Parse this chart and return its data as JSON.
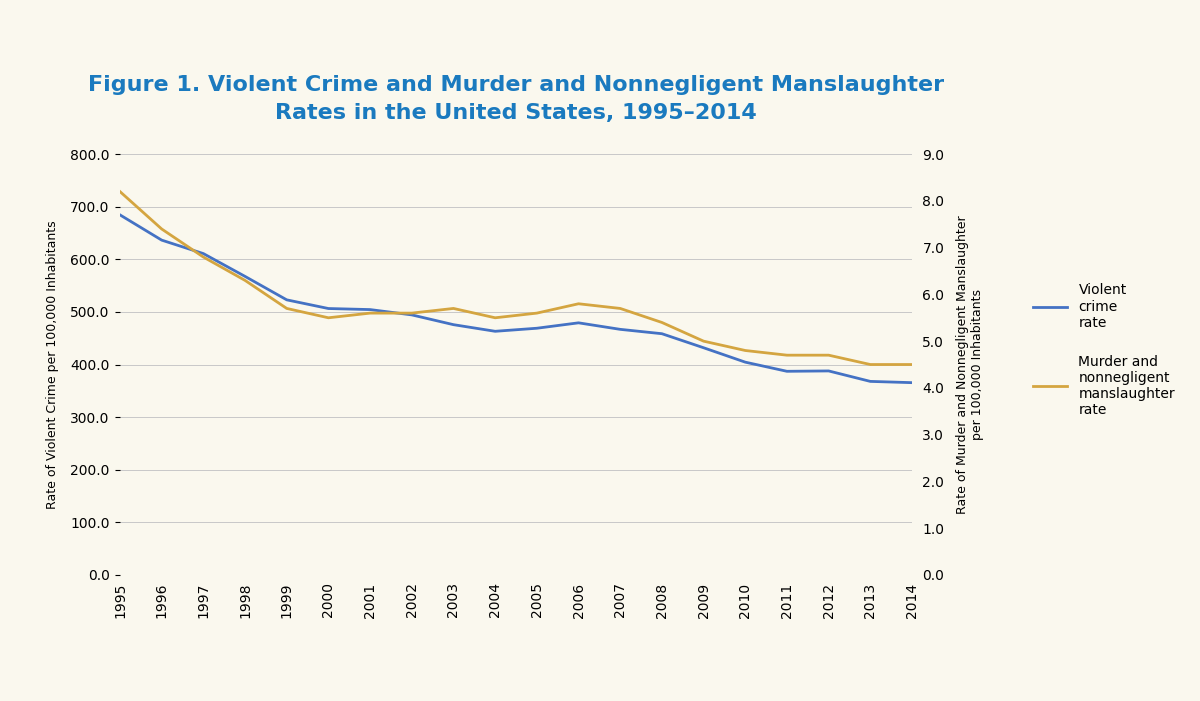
{
  "title_line1": "Figure 1. Violent Crime and Murder and Nonnegligent Manslaughter",
  "title_line2": "Rates in the United States, 1995–2014",
  "years": [
    1995,
    1996,
    1997,
    1998,
    1999,
    2000,
    2001,
    2002,
    2003,
    2004,
    2005,
    2006,
    2007,
    2008,
    2009,
    2010,
    2011,
    2012,
    2013,
    2014
  ],
  "violent_crime": [
    684.6,
    636.6,
    611.0,
    567.6,
    523.0,
    506.5,
    504.5,
    494.4,
    475.8,
    463.2,
    469.0,
    479.3,
    466.9,
    458.6,
    431.9,
    404.5,
    387.1,
    387.8,
    367.9,
    365.5
  ],
  "murder": [
    8.2,
    7.4,
    6.8,
    6.3,
    5.7,
    5.5,
    5.6,
    5.6,
    5.7,
    5.5,
    5.6,
    5.8,
    5.7,
    5.4,
    5.0,
    4.8,
    4.7,
    4.7,
    4.5,
    4.5
  ],
  "violent_color": "#4472c4",
  "murder_color": "#d4a540",
  "ylabel_left": "Rate of Violent Crime per 100,000 Inhabitants",
  "ylabel_right": "Rate of Murder and Nonnegligent Manslaughter\nper 100,000 Inhabitants",
  "ylim_left": [
    0,
    800
  ],
  "ylim_right": [
    0,
    9.0
  ],
  "yticks_left": [
    0.0,
    100.0,
    200.0,
    300.0,
    400.0,
    500.0,
    600.0,
    700.0,
    800.0
  ],
  "yticks_right": [
    0.0,
    1.0,
    2.0,
    3.0,
    4.0,
    5.0,
    6.0,
    7.0,
    8.0,
    9.0
  ],
  "legend_violent": "Violent\ncrime\nrate",
  "legend_murder": "Murder and\nnonnegligent\nmanslaughter\nrate",
  "bg_color": "#faf8ee",
  "grid_color": "#c8c8c8",
  "title_color": "#1a7abf",
  "title_fontsize": 16,
  "label_fontsize": 9,
  "tick_fontsize": 10,
  "line_width": 2.0
}
